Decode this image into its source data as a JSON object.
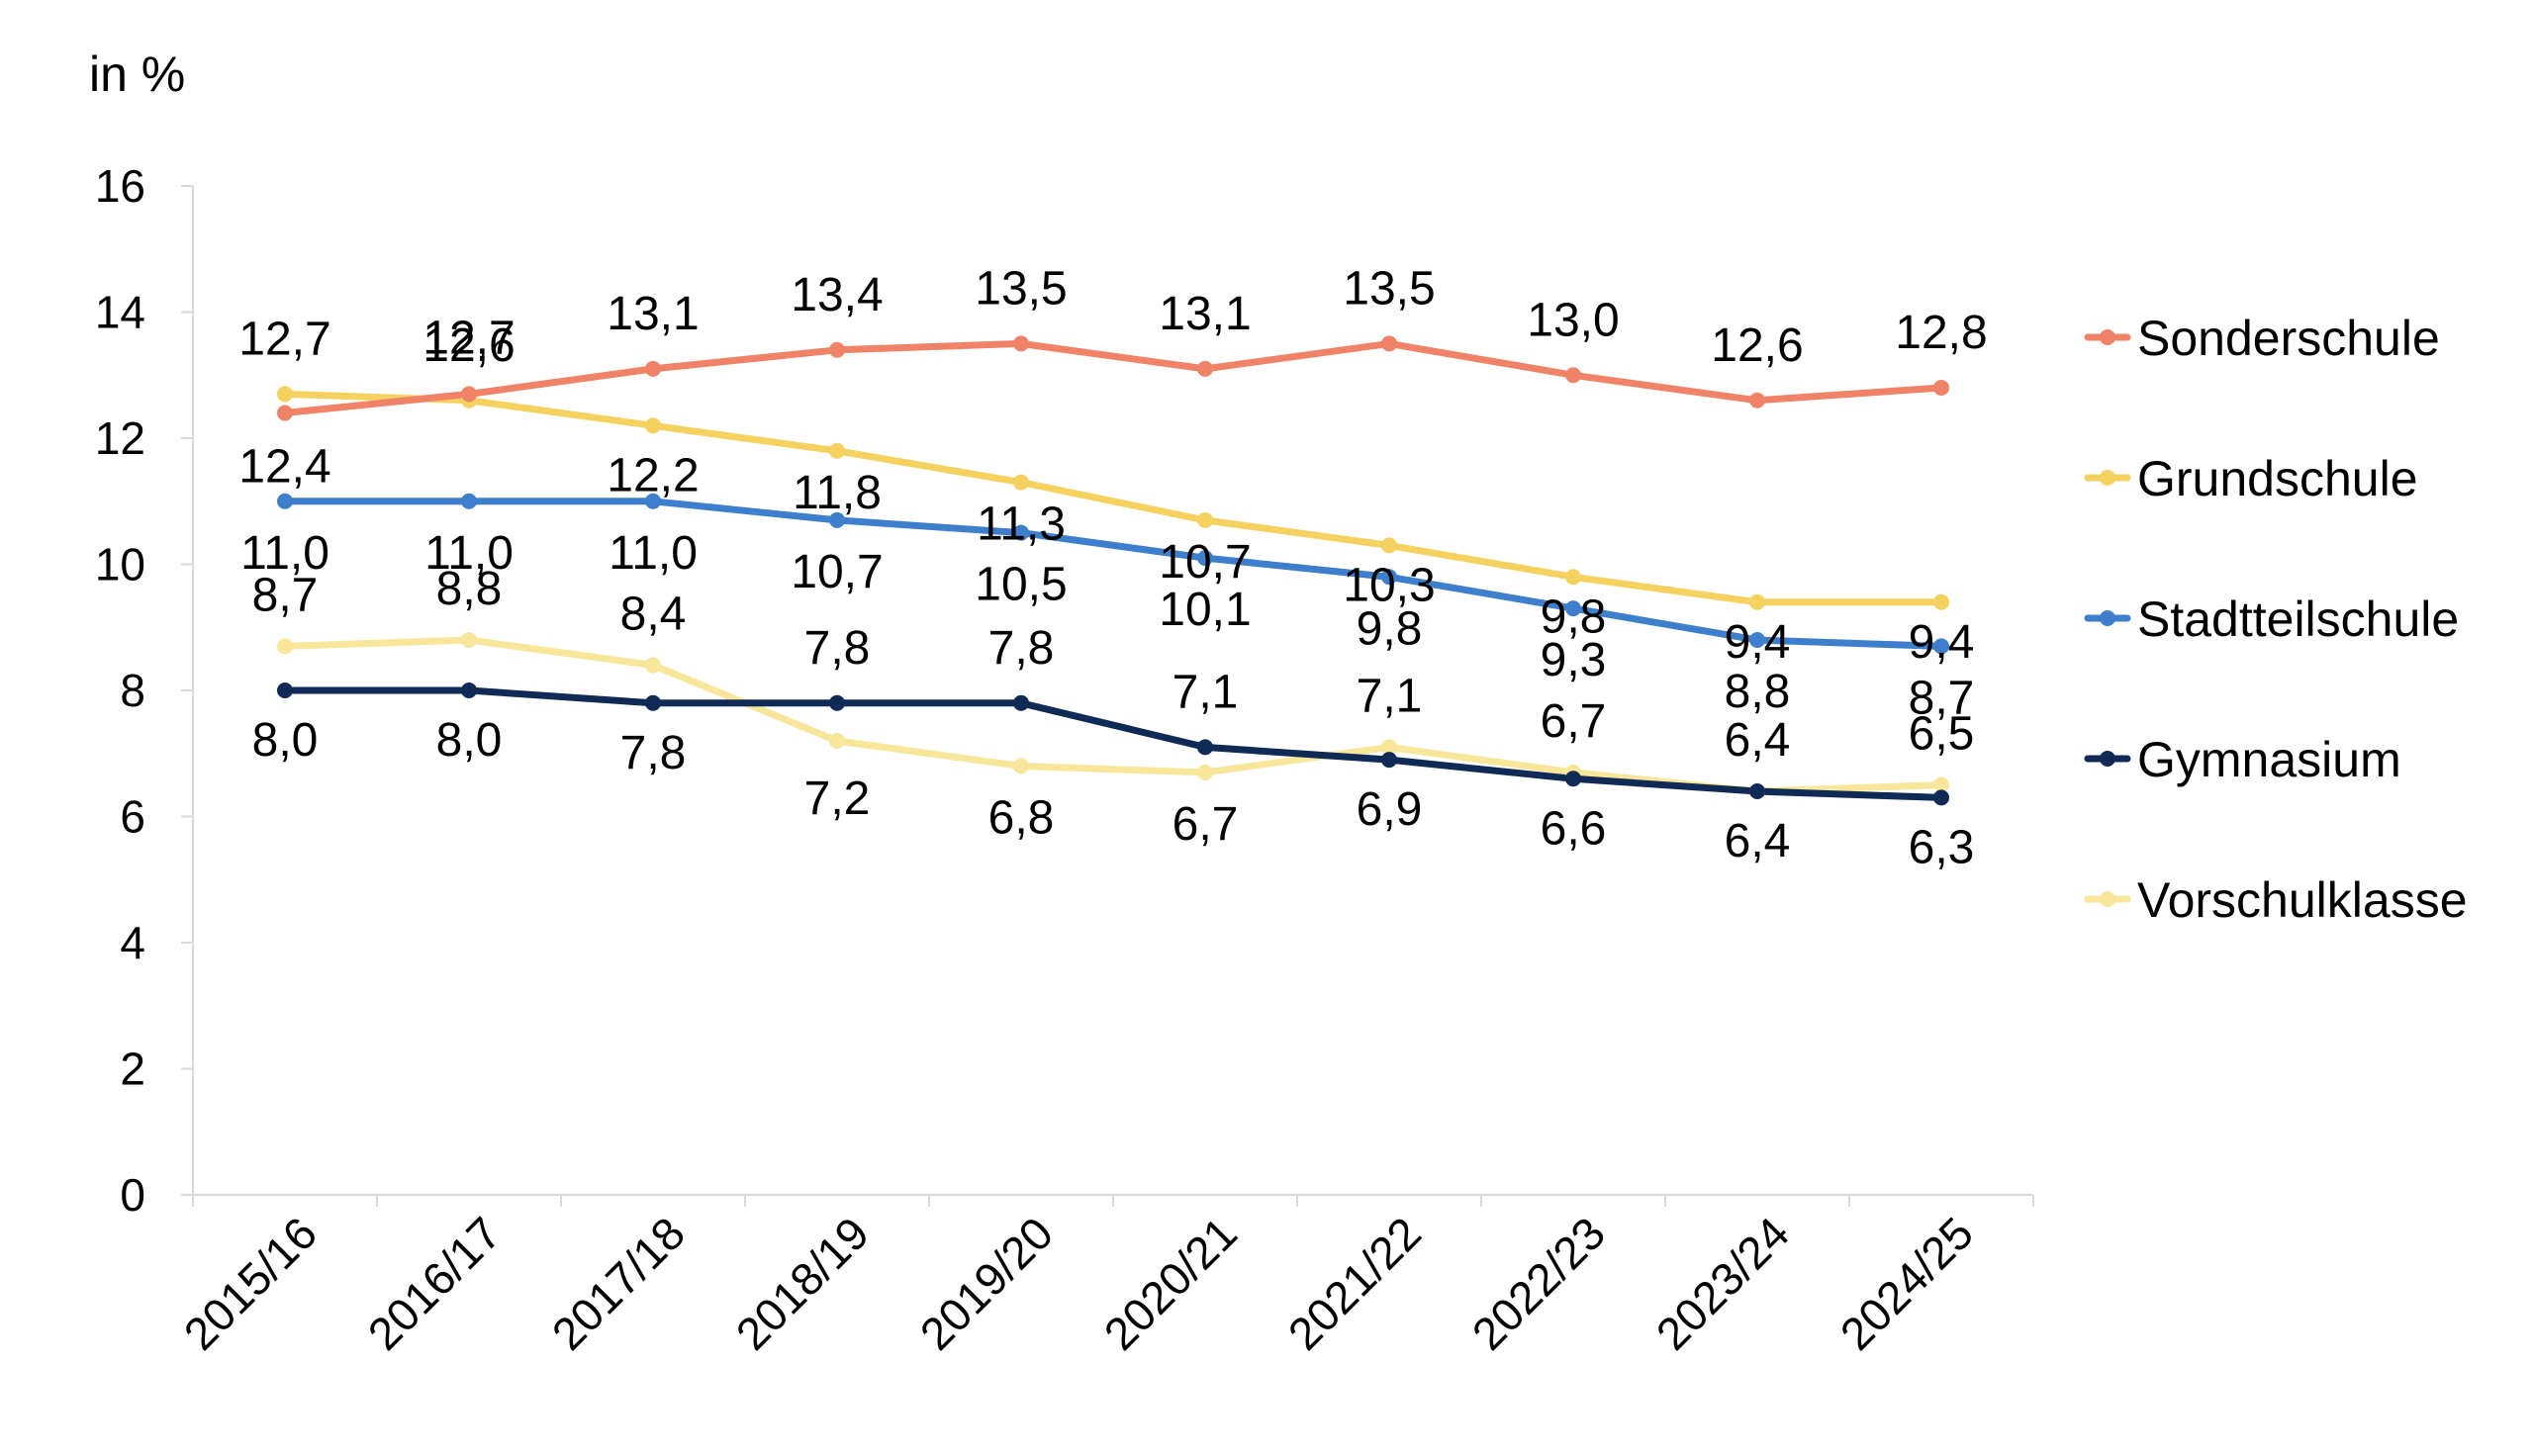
{
  "chart_data": {
    "type": "line",
    "unit_label": "in %",
    "categories": [
      "2015/16",
      "2016/17",
      "2017/18",
      "2018/19",
      "2019/20",
      "2020/21",
      "2021/22",
      "2022/23",
      "2023/24",
      "2024/25"
    ],
    "ylim": [
      0,
      16
    ],
    "yticks": [
      0,
      2,
      4,
      6,
      8,
      10,
      12,
      14,
      16
    ],
    "ytick_labels": [
      "0",
      "2",
      "4",
      "6",
      "8",
      "10",
      "12",
      "14",
      "16"
    ],
    "grid": false,
    "legend_position": "right",
    "series": [
      {
        "name": "Sonderschule",
        "color": "#F08268",
        "values": [
          12.4,
          12.7,
          13.1,
          13.4,
          13.5,
          13.1,
          13.5,
          13.0,
          12.6,
          12.8
        ],
        "labels": [
          "12,4",
          "12,7",
          "13,1",
          "13,4",
          "13,5",
          "13,1",
          "13,5",
          "13,0",
          "12,6",
          "12,8"
        ]
      },
      {
        "name": "Grundschule",
        "color": "#F5D260",
        "values": [
          12.7,
          12.6,
          12.2,
          11.8,
          11.3,
          10.7,
          10.3,
          9.8,
          9.4,
          9.4
        ],
        "labels": [
          "12,7",
          "12,6",
          "12,2",
          "11,8",
          "11,3",
          "10,7",
          "10,3",
          "9,8",
          "9,4",
          "9,4"
        ]
      },
      {
        "name": "Stadtteilschule",
        "color": "#3D7FCC",
        "values": [
          11.0,
          11.0,
          11.0,
          10.7,
          10.5,
          10.1,
          9.8,
          9.3,
          8.8,
          8.7
        ],
        "labels": [
          "11,0",
          "11,0",
          "11,0",
          "10,7",
          "10,5",
          "10,1",
          "9,8",
          "9,3",
          "8,8",
          "8,7"
        ]
      },
      {
        "name": "Gymnasium",
        "color": "#0E2A55",
        "values": [
          8.0,
          8.0,
          7.8,
          7.8,
          7.8,
          7.1,
          6.9,
          6.6,
          6.4,
          6.3
        ],
        "labels": [
          "8,0",
          "8,0",
          "7,8",
          "7,8",
          "7,8",
          "7,1",
          "6,9",
          "6,6",
          "6,4",
          "6,3"
        ]
      },
      {
        "name": "Vorschulklasse",
        "color": "#F8E69A",
        "values": [
          8.7,
          8.8,
          8.4,
          7.2,
          6.8,
          6.7,
          7.1,
          6.7,
          6.4,
          6.5
        ],
        "labels": [
          "8,7",
          "8,8",
          "8,4",
          "7,2",
          "6,8",
          "6,7",
          "7,1",
          "6,7",
          "6,4",
          "6,5"
        ]
      }
    ]
  }
}
